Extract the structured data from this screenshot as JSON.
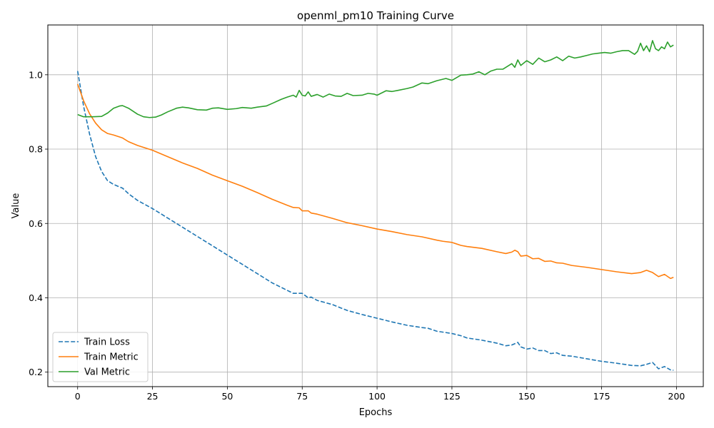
{
  "chart_data": {
    "type": "line",
    "title": "openml_pm10 Training Curve",
    "xlabel": "Epochs",
    "ylabel": "Value",
    "xlim": [
      -9.95,
      208.95
    ],
    "ylim": [
      0.161,
      1.134
    ],
    "xticks": [
      0,
      25,
      50,
      75,
      100,
      125,
      150,
      175,
      200
    ],
    "yticks": [
      0.2,
      0.4,
      0.6,
      0.8,
      1.0
    ],
    "ytick_labels": [
      "0.2",
      "0.4",
      "0.6",
      "0.8",
      "1.0"
    ],
    "grid": true,
    "legend_position": "lower-left",
    "series": [
      {
        "name": "Train Loss",
        "color": "#1f77b4",
        "style": "dashed",
        "x": [
          0,
          2,
          4,
          6,
          8,
          10,
          12,
          15,
          17,
          20,
          25,
          30,
          35,
          40,
          45,
          50,
          55,
          60,
          65,
          70,
          72,
          75,
          77,
          78,
          80,
          85,
          90,
          95,
          100,
          105,
          110,
          115,
          117,
          120,
          125,
          128,
          130,
          135,
          140,
          143,
          145,
          147,
          148,
          150,
          152,
          154,
          156,
          158,
          160,
          162,
          165,
          170,
          175,
          180,
          185,
          188,
          190,
          192,
          194,
          196,
          198,
          199
        ],
        "y": [
          1.01,
          0.915,
          0.84,
          0.78,
          0.74,
          0.715,
          0.705,
          0.695,
          0.68,
          0.662,
          0.64,
          0.615,
          0.59,
          0.565,
          0.54,
          0.515,
          0.49,
          0.465,
          0.44,
          0.42,
          0.412,
          0.412,
          0.4,
          0.402,
          0.393,
          0.382,
          0.366,
          0.355,
          0.345,
          0.335,
          0.326,
          0.32,
          0.318,
          0.31,
          0.304,
          0.298,
          0.292,
          0.286,
          0.278,
          0.271,
          0.273,
          0.28,
          0.268,
          0.262,
          0.265,
          0.258,
          0.258,
          0.25,
          0.252,
          0.245,
          0.243,
          0.236,
          0.229,
          0.224,
          0.218,
          0.217,
          0.221,
          0.226,
          0.209,
          0.215,
          0.206,
          0.205
        ]
      },
      {
        "name": "Train Metric",
        "color": "#ff7f0e",
        "style": "solid",
        "x": [
          0,
          2,
          4,
          6,
          8,
          10,
          12,
          15,
          17,
          20,
          25,
          30,
          35,
          40,
          45,
          50,
          55,
          60,
          65,
          70,
          72,
          74,
          75,
          77,
          78,
          80,
          85,
          90,
          95,
          100,
          105,
          110,
          115,
          120,
          122,
          125,
          128,
          130,
          135,
          140,
          143,
          145,
          146,
          147,
          148,
          150,
          152,
          154,
          156,
          158,
          160,
          162,
          165,
          170,
          175,
          180,
          185,
          188,
          190,
          192,
          194,
          196,
          198,
          199
        ],
        "y": [
          0.975,
          0.93,
          0.895,
          0.87,
          0.852,
          0.842,
          0.838,
          0.83,
          0.82,
          0.81,
          0.797,
          0.78,
          0.763,
          0.748,
          0.73,
          0.715,
          0.7,
          0.683,
          0.665,
          0.649,
          0.643,
          0.642,
          0.634,
          0.634,
          0.628,
          0.625,
          0.614,
          0.602,
          0.594,
          0.585,
          0.578,
          0.57,
          0.564,
          0.555,
          0.552,
          0.549,
          0.541,
          0.538,
          0.533,
          0.524,
          0.519,
          0.523,
          0.528,
          0.524,
          0.512,
          0.514,
          0.505,
          0.506,
          0.498,
          0.499,
          0.494,
          0.493,
          0.487,
          0.482,
          0.476,
          0.47,
          0.465,
          0.468,
          0.474,
          0.468,
          0.457,
          0.463,
          0.452,
          0.455
        ]
      },
      {
        "name": "Val Metric",
        "color": "#2ca02c",
        "style": "solid",
        "x": [
          0,
          2,
          5,
          8,
          10,
          12,
          14,
          15,
          17,
          20,
          22,
          24,
          26,
          28,
          30,
          33,
          35,
          37,
          40,
          43,
          45,
          47,
          50,
          53,
          55,
          58,
          60,
          63,
          65,
          68,
          70,
          72,
          73,
          74,
          75,
          76,
          77,
          78,
          80,
          82,
          84,
          86,
          88,
          90,
          92,
          95,
          97,
          99,
          100,
          103,
          105,
          107,
          110,
          112,
          115,
          117,
          120,
          123,
          125,
          128,
          130,
          132,
          134,
          136,
          138,
          140,
          142,
          144,
          145,
          146,
          147,
          148,
          150,
          152,
          154,
          156,
          158,
          160,
          162,
          164,
          166,
          168,
          170,
          172,
          174,
          176,
          178,
          180,
          182,
          184,
          186,
          187,
          188,
          189,
          190,
          191,
          192,
          193,
          194,
          195,
          196,
          197,
          198,
          199
        ],
        "y": [
          0.893,
          0.887,
          0.887,
          0.888,
          0.897,
          0.91,
          0.916,
          0.917,
          0.91,
          0.894,
          0.887,
          0.885,
          0.886,
          0.892,
          0.9,
          0.91,
          0.913,
          0.911,
          0.906,
          0.905,
          0.91,
          0.911,
          0.907,
          0.909,
          0.912,
          0.91,
          0.913,
          0.916,
          0.923,
          0.934,
          0.94,
          0.945,
          0.94,
          0.958,
          0.945,
          0.943,
          0.954,
          0.942,
          0.947,
          0.94,
          0.948,
          0.943,
          0.942,
          0.95,
          0.944,
          0.945,
          0.95,
          0.948,
          0.945,
          0.957,
          0.955,
          0.958,
          0.963,
          0.967,
          0.978,
          0.976,
          0.984,
          0.99,
          0.985,
          0.999,
          1.0,
          1.002,
          1.008,
          1.0,
          1.01,
          1.015,
          1.015,
          1.025,
          1.03,
          1.02,
          1.04,
          1.025,
          1.038,
          1.028,
          1.045,
          1.035,
          1.04,
          1.048,
          1.038,
          1.05,
          1.045,
          1.048,
          1.052,
          1.056,
          1.058,
          1.06,
          1.058,
          1.062,
          1.065,
          1.065,
          1.055,
          1.063,
          1.085,
          1.065,
          1.078,
          1.062,
          1.092,
          1.07,
          1.065,
          1.075,
          1.07,
          1.088,
          1.075,
          1.08
        ]
      }
    ]
  }
}
